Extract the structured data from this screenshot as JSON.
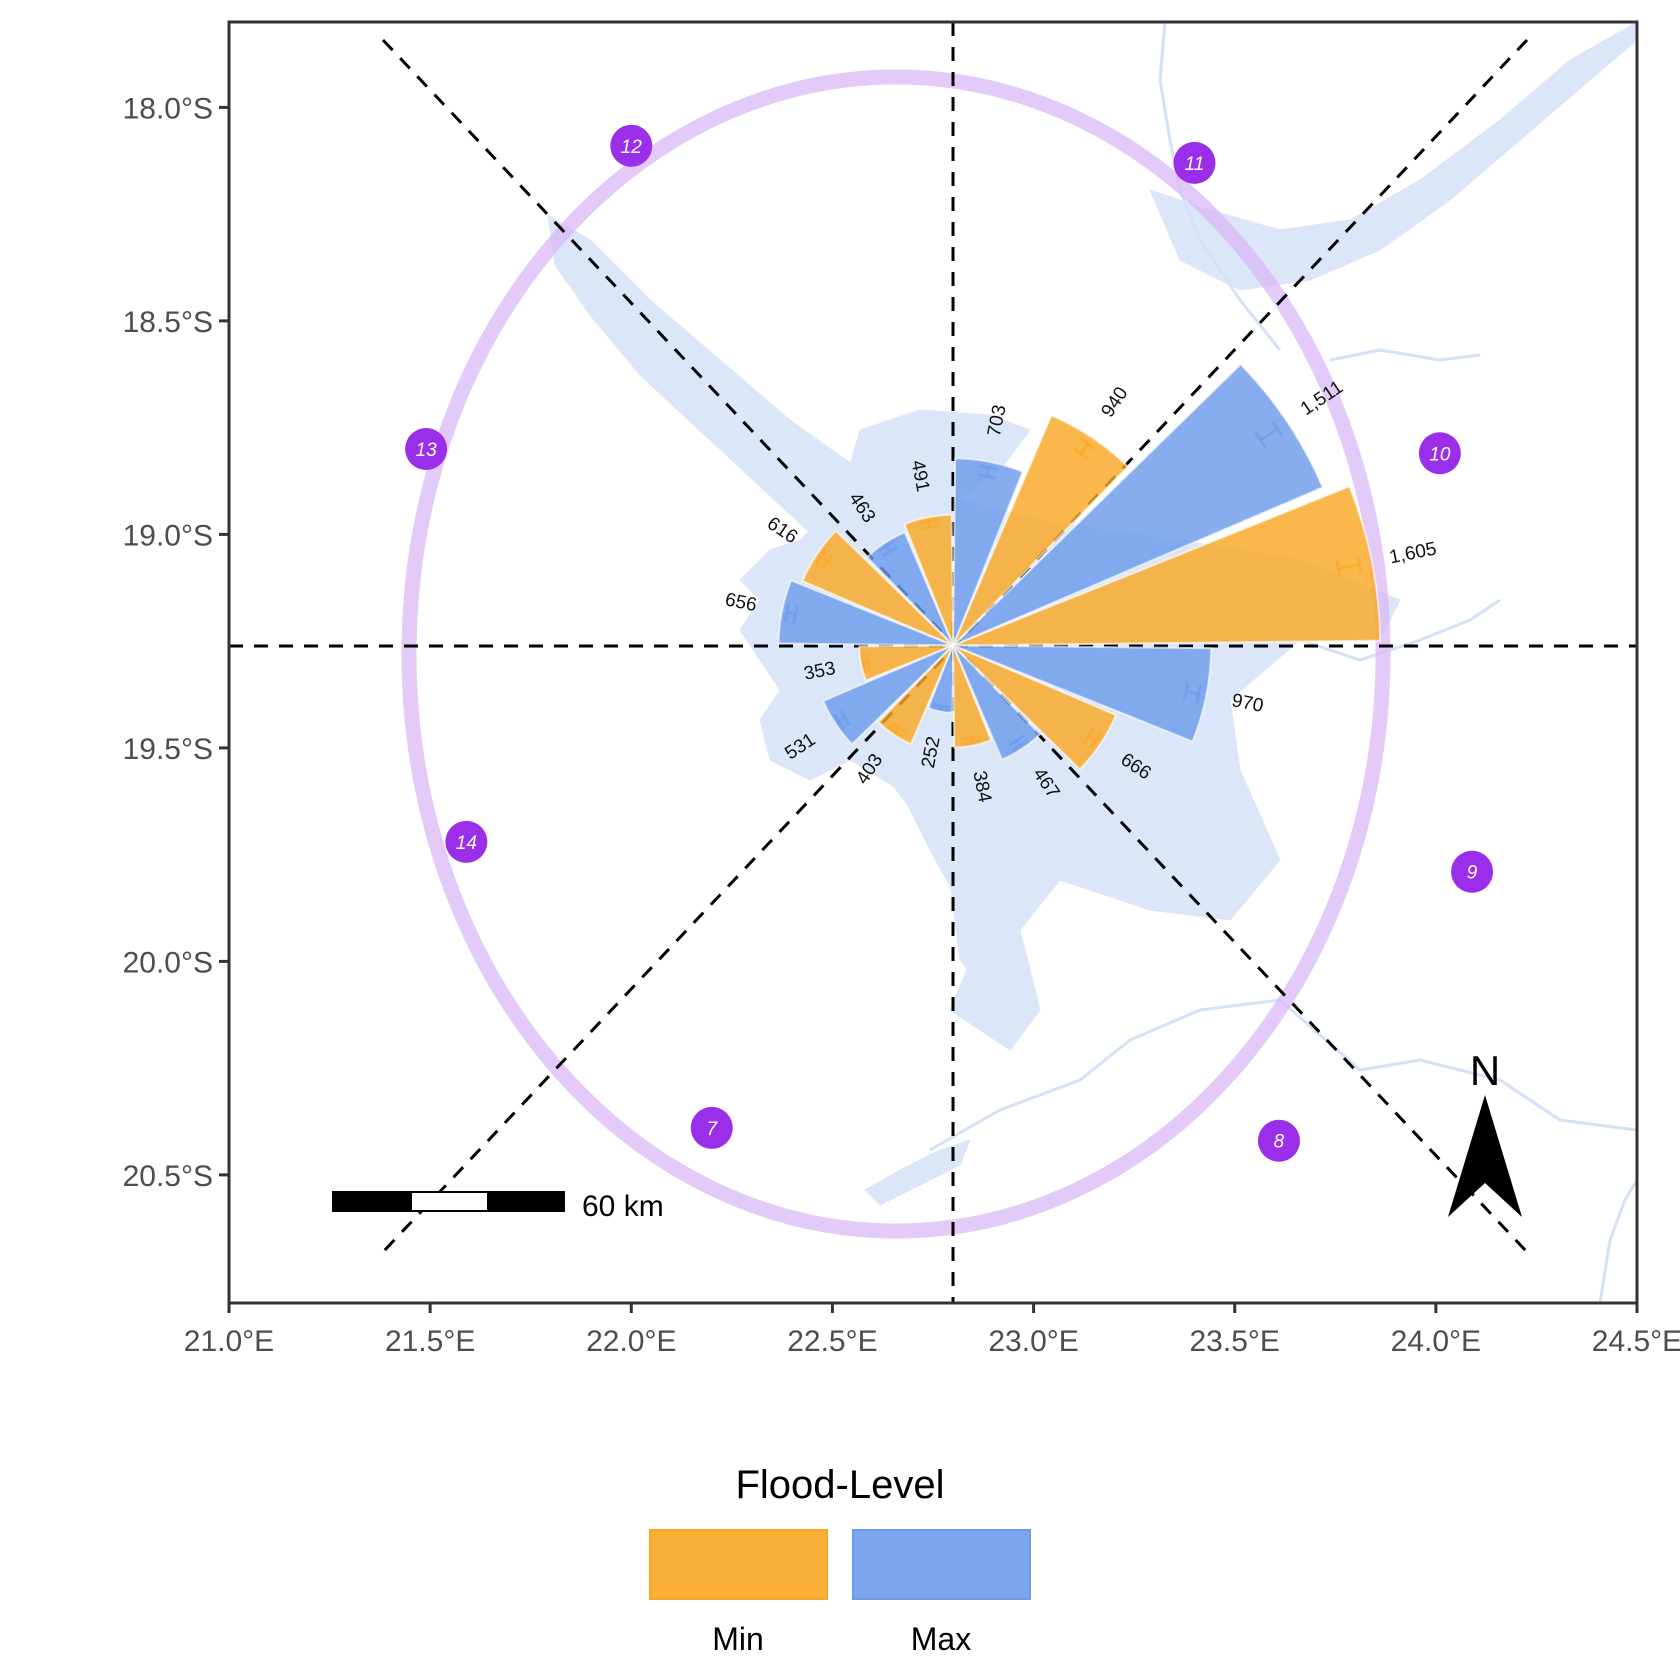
{
  "chart_data": {
    "type": "rose-on-map",
    "x_axis": {
      "range": [
        21.0,
        24.5
      ],
      "ticks": [
        {
          "value": 21.0,
          "label": "21.0°E"
        },
        {
          "value": 21.5,
          "label": "21.5°E"
        },
        {
          "value": 22.0,
          "label": "22.0°E"
        },
        {
          "value": 22.5,
          "label": "22.5°E"
        },
        {
          "value": 23.0,
          "label": "23.0°E"
        },
        {
          "value": 23.5,
          "label": "23.5°E"
        },
        {
          "value": 24.0,
          "label": "24.0°E"
        },
        {
          "value": 24.5,
          "label": "24.5°E"
        }
      ]
    },
    "y_axis": {
      "range": [
        -17.8,
        -20.8
      ],
      "ticks": [
        {
          "value": -18.0,
          "label": "18.0°S"
        },
        {
          "value": -18.5,
          "label": "18.5°S"
        },
        {
          "value": -19.0,
          "label": "19.0°S"
        },
        {
          "value": -19.5,
          "label": "19.5°S"
        },
        {
          "value": -20.0,
          "label": "20.0°S"
        },
        {
          "value": -20.5,
          "label": "20.5°S"
        }
      ]
    },
    "center": {
      "lon": 22.8,
      "lat": -19.26
    },
    "series": [
      {
        "name": "Min",
        "color": "#F9A825"
      },
      {
        "name": "Max",
        "color": "#6D9BEA"
      }
    ],
    "bars": [
      {
        "series": "Min",
        "bearing": 78.75,
        "value": 1605,
        "label": "1,605"
      },
      {
        "series": "Max",
        "bearing": 56.25,
        "value": 1511,
        "label": "1,511"
      },
      {
        "series": "Min",
        "bearing": 33.75,
        "value": 940,
        "label": "940"
      },
      {
        "series": "Max",
        "bearing": 11.25,
        "value": 703,
        "label": "703"
      },
      {
        "series": "Min",
        "bearing": -11.25,
        "value": 491,
        "label": "491"
      },
      {
        "series": "Max",
        "bearing": -33.75,
        "value": 463,
        "label": "463"
      },
      {
        "series": "Min",
        "bearing": -56.25,
        "value": 616,
        "label": "616"
      },
      {
        "series": "Max",
        "bearing": -78.75,
        "value": 656,
        "label": "656"
      },
      {
        "series": "Min",
        "bearing": -101.25,
        "value": 353,
        "label": "353"
      },
      {
        "series": "Max",
        "bearing": -123.75,
        "value": 531,
        "label": "531"
      },
      {
        "series": "Min",
        "bearing": -146.25,
        "value": 403,
        "label": "403"
      },
      {
        "series": "Max",
        "bearing": -168.75,
        "value": 252,
        "label": "252"
      },
      {
        "series": "Min",
        "bearing": 168.75,
        "value": 384,
        "label": "384"
      },
      {
        "series": "Max",
        "bearing": 146.25,
        "value": 467,
        "label": "467"
      },
      {
        "series": "Min",
        "bearing": 123.75,
        "value": 666,
        "label": "666"
      },
      {
        "series": "Max",
        "bearing": 101.25,
        "value": 970,
        "label": "970"
      }
    ],
    "sites": [
      {
        "label": "7",
        "lon": 22.2,
        "lat": -20.39
      },
      {
        "label": "8",
        "lon": 23.61,
        "lat": -20.42
      },
      {
        "label": "9",
        "lon": 24.09,
        "lat": -19.79
      },
      {
        "label": "10",
        "lon": 24.01,
        "lat": -18.81
      },
      {
        "label": "11",
        "lon": 23.4,
        "lat": -18.13
      },
      {
        "label": "12",
        "lon": 22.0,
        "lat": -18.09
      },
      {
        "label": "13",
        "lon": 21.49,
        "lat": -18.8
      },
      {
        "label": "14",
        "lon": 21.59,
        "lat": -19.72
      }
    ],
    "legend": {
      "title": "Flood-Level",
      "position": "bottom"
    },
    "scale_bar": {
      "label": "60 km"
    },
    "north_arrow": {
      "label": "N"
    }
  }
}
